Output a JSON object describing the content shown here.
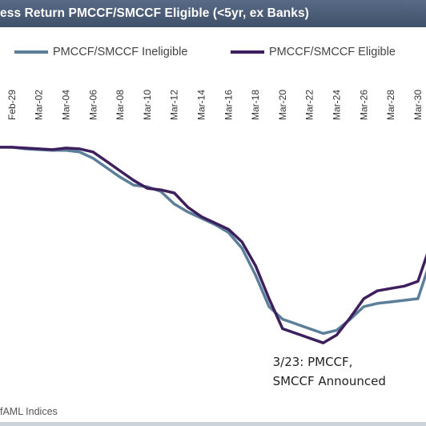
{
  "chart_data": {
    "type": "line",
    "title": "ess Return PMCCF/SMCCF Eligible (<5yr, ex Banks)",
    "categories": [
      "Feb-29",
      "Mar-02",
      "Mar-04",
      "Mar-06",
      "Mar-08",
      "Mar-10",
      "Mar-12",
      "Mar-14",
      "Mar-16",
      "Mar-18",
      "Mar-20",
      "Mar-22",
      "Mar-24",
      "Mar-26",
      "Mar-28",
      "Mar-30"
    ],
    "x": [
      "Feb-28",
      "Feb-29",
      "Mar-01",
      "Mar-02",
      "Mar-03",
      "Mar-04",
      "Mar-05",
      "Mar-06",
      "Mar-07",
      "Mar-08",
      "Mar-09",
      "Mar-10",
      "Mar-11",
      "Mar-12",
      "Mar-13",
      "Mar-14",
      "Mar-15",
      "Mar-16",
      "Mar-17",
      "Mar-18",
      "Mar-19",
      "Mar-20",
      "Mar-21",
      "Mar-22",
      "Mar-23",
      "Mar-24",
      "Mar-25",
      "Mar-26",
      "Mar-27",
      "Mar-28",
      "Mar-29",
      "Mar-30",
      "Mar-31"
    ],
    "series": [
      {
        "name": "PMCCF/SMCCF Ineligible",
        "color": "#5b7f9b",
        "values": [
          0.0,
          0.0,
          -0.1,
          -0.15,
          -0.2,
          -0.2,
          -0.3,
          -0.7,
          -1.3,
          -1.9,
          -2.4,
          -2.5,
          -2.8,
          -3.6,
          -4.1,
          -4.5,
          -4.9,
          -5.4,
          -6.4,
          -8.1,
          -10.1,
          -10.9,
          -11.2,
          -11.5,
          -11.8,
          -11.6,
          -10.9,
          -10.1,
          -9.9,
          -9.8,
          -9.7,
          -9.6,
          -7.0
        ]
      },
      {
        "name": "PMCCF/SMCCF Eligible",
        "color": "#3e1f5e",
        "values": [
          0.0,
          0.0,
          -0.05,
          -0.1,
          -0.15,
          -0.05,
          -0.1,
          -0.3,
          -0.9,
          -1.5,
          -2.1,
          -2.6,
          -2.7,
          -2.9,
          -3.8,
          -4.4,
          -4.8,
          -5.2,
          -6.0,
          -7.5,
          -9.6,
          -11.5,
          -11.8,
          -12.1,
          -12.4,
          -11.9,
          -10.8,
          -9.6,
          -9.1,
          -8.95,
          -8.8,
          -8.5,
          -6.0
        ]
      }
    ],
    "ylim": [
      -13,
      0.3
    ],
    "grid": false,
    "legend_position": "top",
    "annotations": [
      {
        "x": "Mar-23",
        "lines": [
          "3/23: PMCCF,",
          "SMCCF Announced"
        ]
      }
    ],
    "source": "fAML Indices"
  }
}
